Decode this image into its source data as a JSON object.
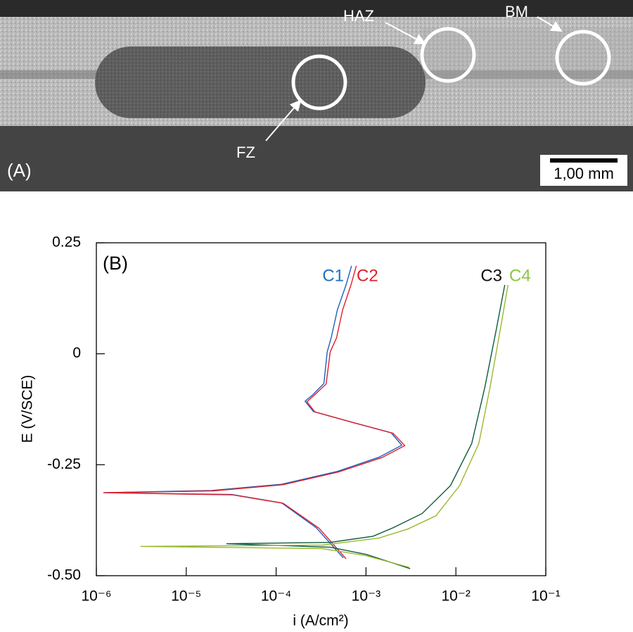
{
  "panel_a": {
    "label": "(A)",
    "annotations": [
      "HAZ",
      "BM",
      "FZ"
    ],
    "scale_bar": "1,00 mm"
  },
  "chart_data": {
    "type": "line",
    "panel_label": "(B)",
    "x_label": "i (A/cm²)",
    "y_label": "E (V/SCE)",
    "x_scale": "log",
    "xlim": [
      1e-06,
      0.1
    ],
    "xticks": [
      {
        "value": 1e-06,
        "label": "10⁻⁶"
      },
      {
        "value": 1e-05,
        "label": "10⁻⁵"
      },
      {
        "value": 0.0001,
        "label": "10⁻⁴"
      },
      {
        "value": 0.001,
        "label": "10⁻³"
      },
      {
        "value": 0.01,
        "label": "10⁻²"
      },
      {
        "value": 0.1,
        "label": "10⁻¹"
      }
    ],
    "ylim": [
      -0.5,
      0.25
    ],
    "yticks": [
      0.25,
      0,
      -0.25,
      {
        "value": -0.5,
        "label": "-0.50"
      }
    ],
    "series": [
      {
        "name": "C1",
        "color": "#1f5fbf",
        "label_color": "#1f6fc0",
        "x": [
          0.00056,
          0.00028,
          0.000115,
          3.2e-05,
          1.2e-06,
          1.9e-05,
          0.000115,
          0.00048,
          0.0014,
          0.0025,
          0.0019,
          0.00069,
          0.00026,
          0.00021,
          0.00026,
          0.00034,
          0.00037,
          0.00041,
          0.00048,
          0.0006,
          0.00069
        ],
        "values": [
          -0.46,
          -0.392,
          -0.336,
          -0.317,
          -0.313,
          -0.308,
          -0.294,
          -0.265,
          -0.233,
          -0.206,
          -0.178,
          -0.154,
          -0.13,
          -0.107,
          -0.091,
          -0.067,
          0.004,
          0.036,
          0.099,
          0.155,
          0.198
        ]
      },
      {
        "name": "C2",
        "color": "#e0202a",
        "label_color": "#e0202a",
        "x": [
          0.0006,
          0.0003,
          0.00012,
          3.3e-05,
          1.2e-06,
          2e-05,
          0.00012,
          0.0005,
          0.0015,
          0.0027,
          0.002,
          0.00072,
          0.00027,
          0.00022,
          0.00027,
          0.00036,
          0.0004,
          0.00047,
          0.00055,
          0.00068,
          0.00078
        ],
        "values": [
          -0.462,
          -0.393,
          -0.337,
          -0.318,
          -0.313,
          -0.309,
          -0.295,
          -0.266,
          -0.234,
          -0.207,
          -0.179,
          -0.155,
          -0.131,
          -0.108,
          -0.092,
          -0.068,
          0.004,
          0.036,
          0.099,
          0.155,
          0.198
        ]
      },
      {
        "name": "C3",
        "color": "#0a5a3c",
        "label_color": "#111111",
        "x": [
          0.0031,
          0.001,
          0.0004,
          2.8e-05,
          0.0004,
          0.0012,
          0.002,
          0.0042,
          0.0087,
          0.015,
          0.021,
          0.028,
          0.035
        ],
        "values": [
          -0.484,
          -0.452,
          -0.436,
          -0.428,
          -0.425,
          -0.411,
          -0.392,
          -0.36,
          -0.297,
          -0.202,
          -0.075,
          0.052,
          0.155
        ]
      },
      {
        "name": "C4",
        "color": "#9ab82e",
        "label_color": "#8cc63f",
        "x": [
          0.003,
          0.001,
          0.00033,
          3.1e-06,
          0.00033,
          0.0014,
          0.0029,
          0.006,
          0.011,
          0.018,
          0.024,
          0.031,
          0.038
        ],
        "values": [
          -0.481,
          -0.455,
          -0.439,
          -0.434,
          -0.431,
          -0.415,
          -0.395,
          -0.365,
          -0.297,
          -0.202,
          -0.075,
          0.052,
          0.155
        ]
      }
    ]
  }
}
